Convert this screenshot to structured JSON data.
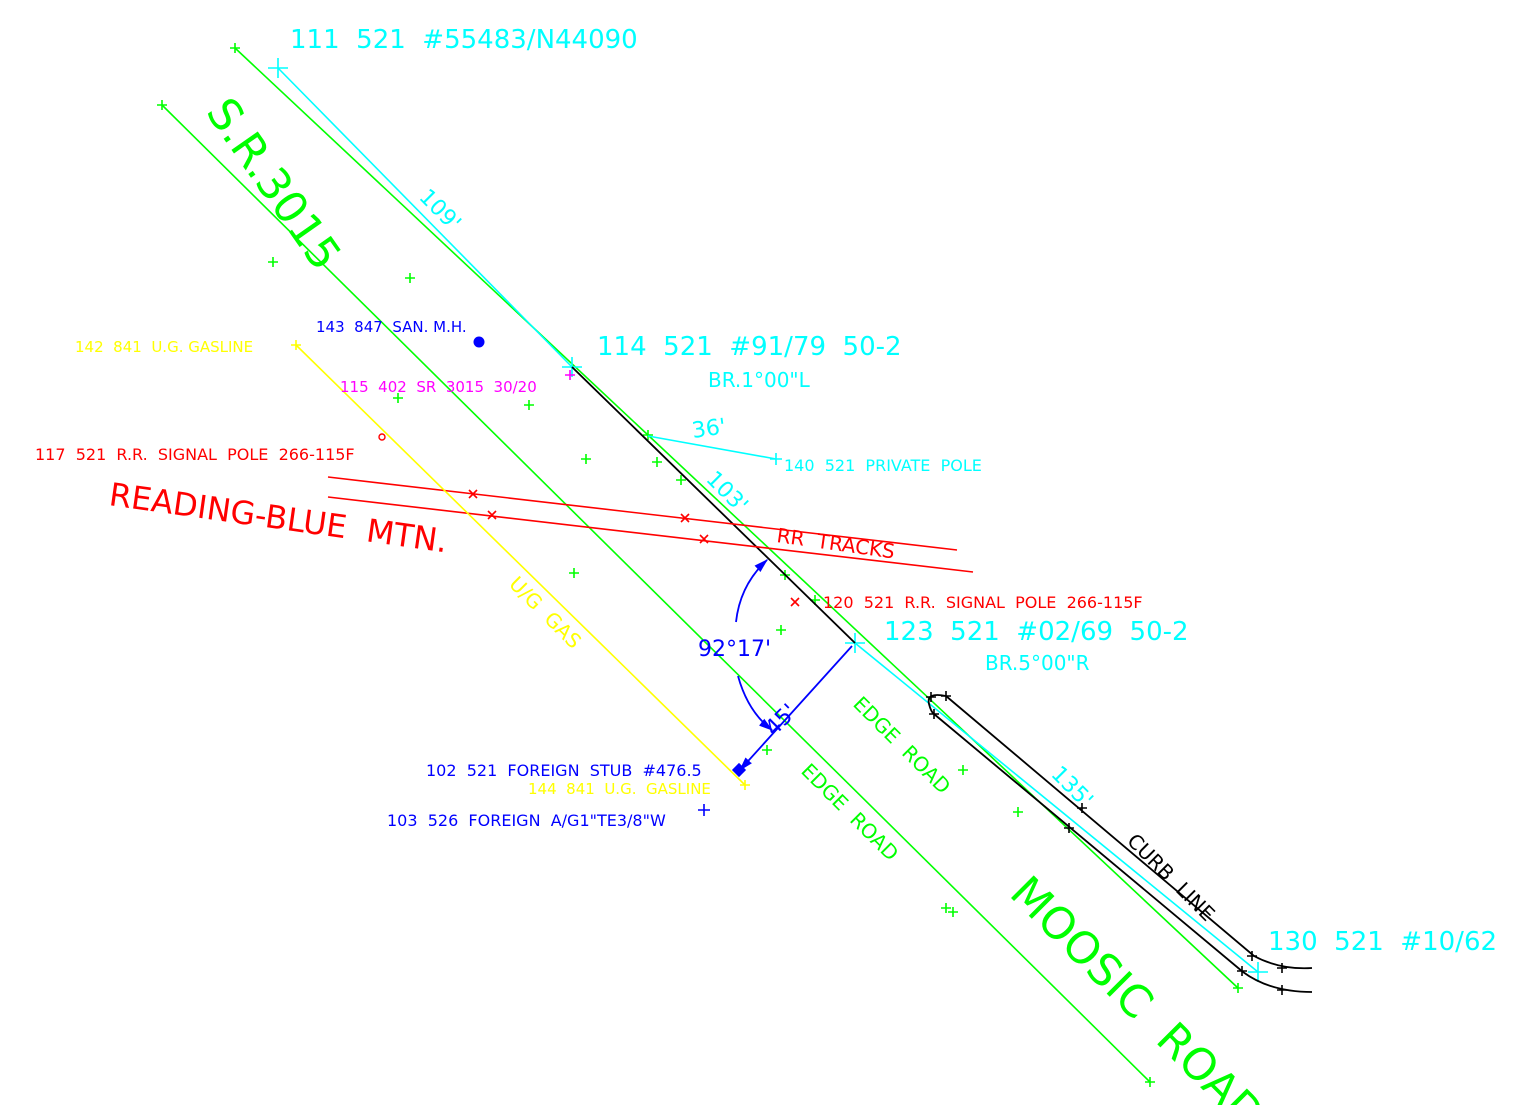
{
  "points": {
    "p111": "111  521  #55483/N44090",
    "p114": "114  521  #91/79  50-2",
    "p114_bearing": "BR.1°00\"L",
    "p123": "123  521  #02/69  50-2",
    "p123_bearing": "BR.5°00\"R",
    "p130": "130  521  #10/62",
    "p143": "143  847  SAN. M.H.",
    "p142": "142  841  U.G. GASLINE",
    "p115": "115  402  SR  3015  30/20",
    "p117": "117  521  R.R.  SIGNAL  POLE  266-115F",
    "p140": "140  521  PRIVATE  POLE",
    "p120": "120  521  R.R.  SIGNAL  POLE  266-115F",
    "p102": "102  521  FOREIGN  STUB  #476.5",
    "p144": "144  841  U.G.  GASLINE",
    "p103": "103  526  FOREIGN  A/G1\"TE3/8\"W"
  },
  "labels": {
    "sr3015": "S.R.3015",
    "reading_blue_mtn": "READING-BLUE  MTN.",
    "rr_tracks": "RR  TRACKS",
    "ug_gas": "U/G  GAS",
    "edge_road_1": "EDGE  ROAD",
    "edge_road_2": "EDGE  ROAD",
    "curb_line": "CURB  LINE",
    "moosic_road": "MOOSIC  ROAD"
  },
  "dimensions": {
    "d109": "109'",
    "d36": "36'",
    "d103": "103'",
    "d135": "135'",
    "d45": "45'",
    "angle": "92°17'"
  },
  "colors": {
    "cyan": "#00ffff",
    "green": "#00ff00",
    "yellow": "#ffff00",
    "red": "#ff0000",
    "blue": "#0000ff",
    "magenta": "#ff00ff",
    "black": "#000000"
  }
}
